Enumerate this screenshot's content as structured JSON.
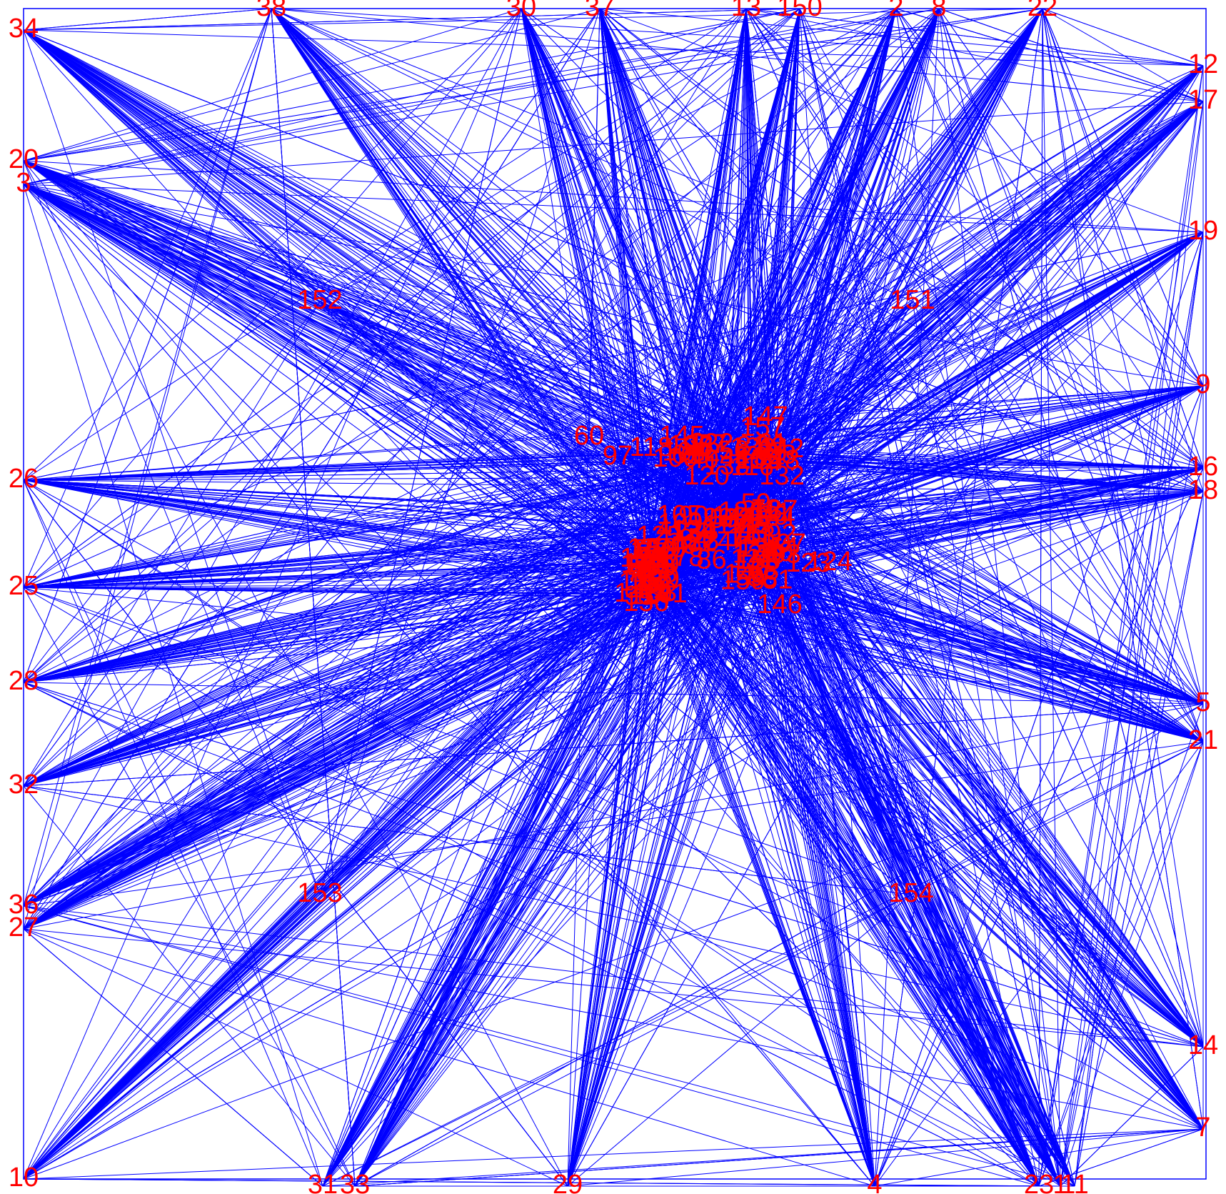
{
  "colors": {
    "edge": "#0000ff",
    "label": "#ff0000",
    "background": "#ffffff",
    "frame": "#0000ff"
  },
  "chart_data": {
    "type": "network",
    "title": "",
    "node_labels": {
      "perimeter": [
        "34",
        "38",
        "30",
        "37",
        "13",
        "150",
        "2",
        "8",
        "22",
        "12",
        "17",
        "20",
        "3",
        "19",
        "9",
        "26",
        "16",
        "18",
        "25",
        "28",
        "5",
        "21",
        "32",
        "36",
        "27",
        "14",
        "7",
        "10",
        "31",
        "33",
        "29",
        "4",
        "23",
        "1",
        "11"
      ],
      "quadrant": [
        "152",
        "151",
        "153",
        "154"
      ],
      "center": [
        "60",
        "97",
        "118",
        "145",
        "147",
        "157",
        "146",
        "123",
        "124",
        "132",
        "126",
        "120",
        "125",
        "130",
        "136",
        "143",
        "100",
        "127",
        "102",
        "103",
        "104",
        "105",
        "106",
        "107",
        "108",
        "109",
        "110",
        "111",
        "112",
        "113",
        "114",
        "115",
        "116",
        "117",
        "119",
        "121",
        "122",
        "128",
        "129",
        "131",
        "133",
        "134",
        "135",
        "137",
        "138",
        "139",
        "140",
        "141",
        "142",
        "144",
        "148",
        "149",
        "155",
        "156",
        "158",
        "159",
        "40",
        "41",
        "42",
        "43",
        "44",
        "45",
        "46",
        "47",
        "48",
        "49",
        "50",
        "51",
        "52",
        "53",
        "54",
        "55",
        "56",
        "57",
        "58",
        "59",
        "61",
        "62",
        "63",
        "64",
        "65",
        "66",
        "67",
        "68",
        "69",
        "70",
        "71",
        "72",
        "73",
        "74",
        "75",
        "76",
        "77",
        "78",
        "79",
        "80",
        "81",
        "82",
        "83",
        "84",
        "85",
        "86",
        "87",
        "88",
        "89",
        "90",
        "91",
        "92",
        "93",
        "94",
        "95",
        "96",
        "98",
        "99",
        "101"
      ]
    }
  }
}
